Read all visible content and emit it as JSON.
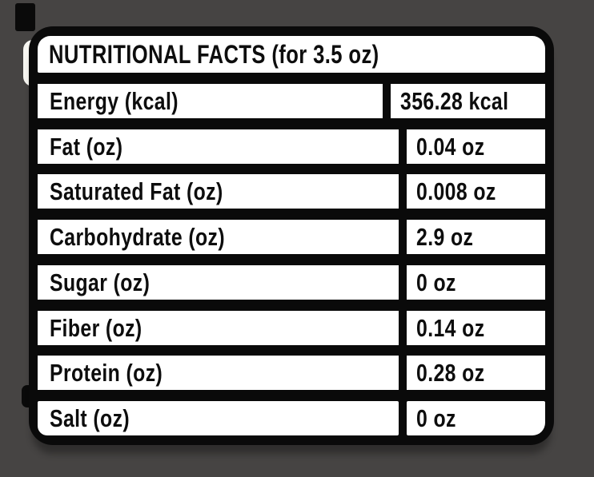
{
  "colors": {
    "background": "#464443",
    "ink": "#0a0a0a",
    "paper": "#ffffff"
  },
  "label": {
    "title": "NUTRITIONAL FACTS (for 3.5 oz)",
    "serving": "3.5 oz",
    "rows": [
      {
        "name": "Energy (kcal)",
        "value": "356.28 kcal"
      },
      {
        "name": "Fat (oz)",
        "value": "0.04 oz"
      },
      {
        "name": "Saturated Fat (oz)",
        "value": "0.008 oz"
      },
      {
        "name": "Carbohydrate (oz)",
        "value": "2.9 oz"
      },
      {
        "name": "Sugar (oz)",
        "value": "0 oz"
      },
      {
        "name": "Fiber (oz)",
        "value": "0.14 oz"
      },
      {
        "name": "Protein (oz)",
        "value": "0.28 oz"
      },
      {
        "name": "Salt (oz)",
        "value": "0 oz"
      }
    ]
  }
}
